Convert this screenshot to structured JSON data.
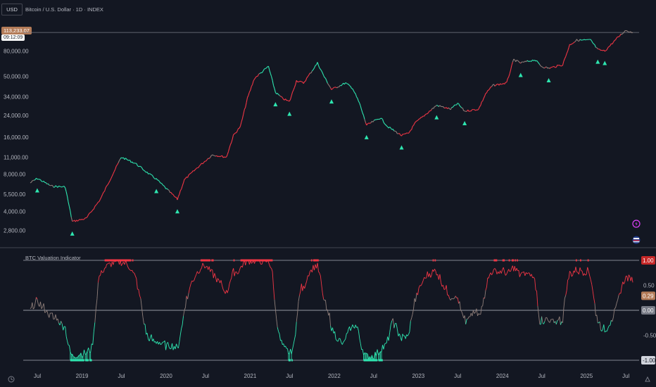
{
  "header": {
    "currency": "USD",
    "symbol_title": "Bitcoin / U.S. Dollar · 1D · INDEX",
    "last_price": "113,233.07",
    "countdown": "09:12:09"
  },
  "indicator": {
    "title": "BTC Valuation Indicator"
  },
  "icons": [
    "flash-icon",
    "flag-icon",
    "time-zone-icon",
    "scroll-right-icon"
  ],
  "colors": {
    "background": "#131722",
    "hot": "#f23645",
    "cold": "#2ee6b0",
    "neutral": "#8f7f7a",
    "price_tag": "#b37b58",
    "signal_arrow": "#2ee6b0"
  },
  "chart_data": [
    {
      "type": "line",
      "name": "price",
      "scale": "log",
      "yticks": [
        "80,000.00",
        "50,000.00",
        "34,000.00",
        "24,000.00",
        "16,000.00",
        "11,000.00",
        "8,000.00",
        "5,500.00",
        "4,000.00",
        "2,800.00"
      ],
      "xticks": [
        "Jul",
        "2019",
        "Jul",
        "2020",
        "Jul",
        "2021",
        "Jul",
        "2022",
        "Jul",
        "2023",
        "Jul",
        "2024",
        "Jul",
        "2025",
        "Jul"
      ],
      "x_dates": [
        "2018-06",
        "2018-07",
        "2018-09",
        "2018-11",
        "2018-12",
        "2019-02",
        "2019-04",
        "2019-06",
        "2019-07",
        "2019-09",
        "2019-11",
        "2019-12",
        "2020-03",
        "2020-04",
        "2020-06",
        "2020-08",
        "2020-10",
        "2020-11",
        "2020-12",
        "2021-01",
        "2021-02",
        "2021-04",
        "2021-05",
        "2021-06",
        "2021-07",
        "2021-08",
        "2021-09",
        "2021-11",
        "2021-12",
        "2022-01",
        "2022-03",
        "2022-04",
        "2022-05",
        "2022-06",
        "2022-08",
        "2022-09",
        "2022-11",
        "2022-12",
        "2023-01",
        "2023-03",
        "2023-04",
        "2023-06",
        "2023-07",
        "2023-08",
        "2023-10",
        "2023-11",
        "2023-12",
        "2024-02",
        "2024-03",
        "2024-04",
        "2024-06",
        "2024-07",
        "2024-08",
        "2024-10",
        "2024-11",
        "2024-12",
        "2025-02",
        "2025-03",
        "2025-04",
        "2025-06",
        "2025-07",
        "2025-08"
      ],
      "price": [
        6800,
        7400,
        6400,
        6300,
        3300,
        3500,
        5000,
        8500,
        11000,
        9800,
        8000,
        7300,
        5000,
        7200,
        9200,
        11500,
        11000,
        16500,
        19500,
        33000,
        48000,
        60000,
        37000,
        33000,
        31000,
        46000,
        44000,
        64000,
        49000,
        39000,
        44000,
        40000,
        30000,
        20000,
        23000,
        19500,
        16500,
        17200,
        21000,
        26000,
        29000,
        27000,
        30000,
        26000,
        27000,
        36000,
        42000,
        44000,
        68000,
        64000,
        68000,
        60000,
        58000,
        62000,
        90000,
        98000,
        98000,
        82000,
        80000,
        105000,
        118000,
        113233
      ],
      "last_value": 113233.07,
      "signals": [
        "2018-07",
        "2018-12",
        "2019-12",
        "2020-03",
        "2021-05",
        "2021-07",
        "2022-01",
        "2022-06",
        "2022-11",
        "2023-04",
        "2023-08",
        "2024-04",
        "2024-08",
        "2025-03",
        "2025-04"
      ]
    },
    {
      "type": "line",
      "name": "valuation",
      "ylim": [
        -1,
        1
      ],
      "yticks": [
        "0.50",
        "-0.50"
      ],
      "ref_lines": [
        1.0,
        0.0,
        -1.0
      ],
      "axis_labels": {
        "top": "1.00",
        "last": "0.29",
        "zero": "0.00",
        "bottom": "-1.00"
      },
      "last_value": 0.29
    }
  ]
}
